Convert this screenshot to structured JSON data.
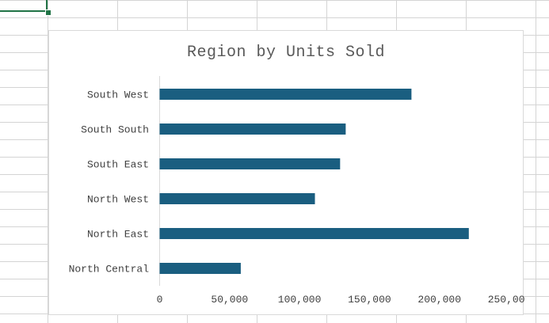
{
  "chart_data": {
    "type": "bar",
    "orientation": "horizontal",
    "title": "Region by Units Sold",
    "xlabel": "",
    "ylabel": "",
    "categories": [
      "South West",
      "South South",
      "South East",
      "North West",
      "North East",
      "North Central"
    ],
    "values": [
      180000,
      133000,
      129000,
      111000,
      221000,
      58000
    ],
    "xlim": [
      0,
      250000
    ],
    "xticks": [
      "0",
      "50,000",
      "100,000",
      "150,000",
      "200,000",
      "250,000"
    ],
    "xtick_values": [
      0,
      50000,
      100000,
      150000,
      200000,
      250000
    ],
    "bar_color": "#1a5e80",
    "grid": false,
    "legend": "none"
  }
}
